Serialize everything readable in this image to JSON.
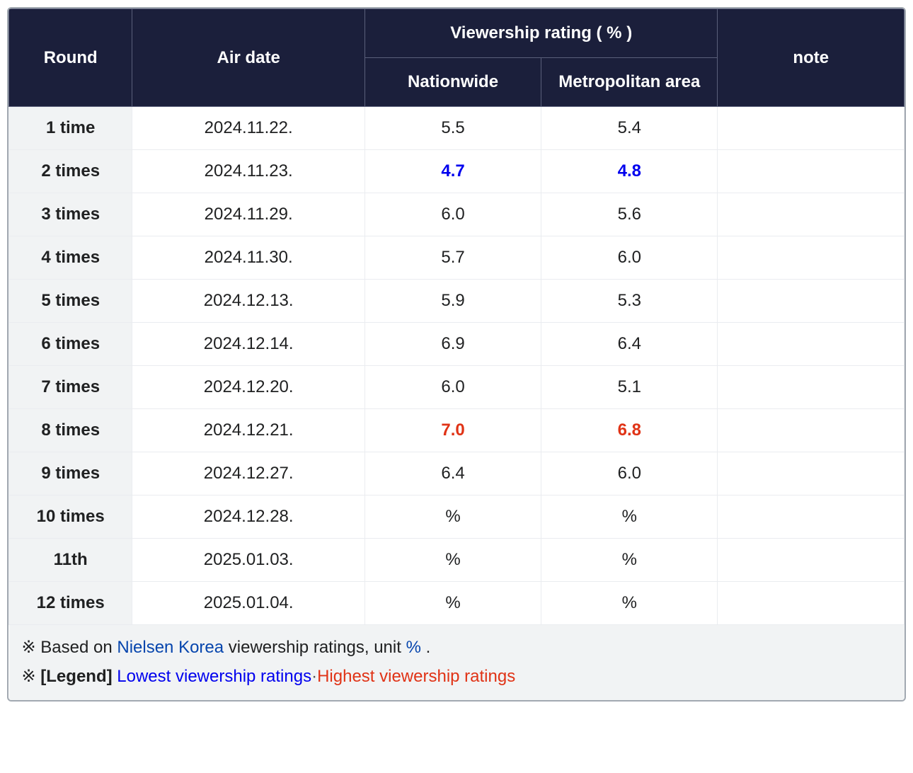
{
  "colors": {
    "header_bg": "#1b1f3b",
    "header_fg": "#ffffff",
    "rowhead_bg": "#f1f3f4",
    "cell_bg": "#ffffff",
    "border": "#eaecf0",
    "low": "#0000ee",
    "high": "#e03316",
    "link": "#0645ad"
  },
  "header": {
    "round": "Round",
    "air_date": "Air date",
    "viewership_group": "Viewership rating ( % )",
    "nationwide": "Nationwide",
    "metro": "Metropolitan area",
    "note": "note"
  },
  "rows": [
    {
      "round": "1 time",
      "date": "2024.11.22.",
      "nat": "5.5",
      "met": "5.4",
      "note": "",
      "style": "normal"
    },
    {
      "round": "2 times",
      "date": "2024.11.23.",
      "nat": "4.7",
      "met": "4.8",
      "note": "",
      "style": "low"
    },
    {
      "round": "3 times",
      "date": "2024.11.29.",
      "nat": "6.0",
      "met": "5.6",
      "note": "",
      "style": "normal"
    },
    {
      "round": "4 times",
      "date": "2024.11.30.",
      "nat": "5.7",
      "met": "6.0",
      "note": "",
      "style": "normal"
    },
    {
      "round": "5 times",
      "date": "2024.12.13.",
      "nat": "5.9",
      "met": "5.3",
      "note": "",
      "style": "normal"
    },
    {
      "round": "6 times",
      "date": "2024.12.14.",
      "nat": "6.9",
      "met": "6.4",
      "note": "",
      "style": "normal"
    },
    {
      "round": "7 times",
      "date": "2024.12.20.",
      "nat": "6.0",
      "met": "5.1",
      "note": "",
      "style": "normal"
    },
    {
      "round": "8 times",
      "date": "2024.12.21.",
      "nat": "7.0",
      "met": "6.8",
      "note": "",
      "style": "high"
    },
    {
      "round": "9 times",
      "date": "2024.12.27.",
      "nat": "6.4",
      "met": "6.0",
      "note": "",
      "style": "normal"
    },
    {
      "round": "10 times",
      "date": "2024.12.28.",
      "nat": "%",
      "met": "%",
      "note": "",
      "style": "normal"
    },
    {
      "round": "11th",
      "date": "2025.01.03.",
      "nat": "%",
      "met": "%",
      "note": "",
      "style": "normal"
    },
    {
      "round": "12 times",
      "date": "2025.01.04.",
      "nat": "%",
      "met": "%",
      "note": "",
      "style": "normal"
    }
  ],
  "footer": {
    "line1_prefix": "※ Based on ",
    "line1_link": "Nielsen Korea",
    "line1_mid": " viewership ratings, unit ",
    "line1_unit": "%",
    "line1_suffix": " .",
    "line2_prefix": "※ ",
    "line2_bold": "[Legend]",
    "line2_low": "Lowest viewership ratings",
    "line2_sep": "·",
    "line2_high": "Highest viewership ratings"
  }
}
